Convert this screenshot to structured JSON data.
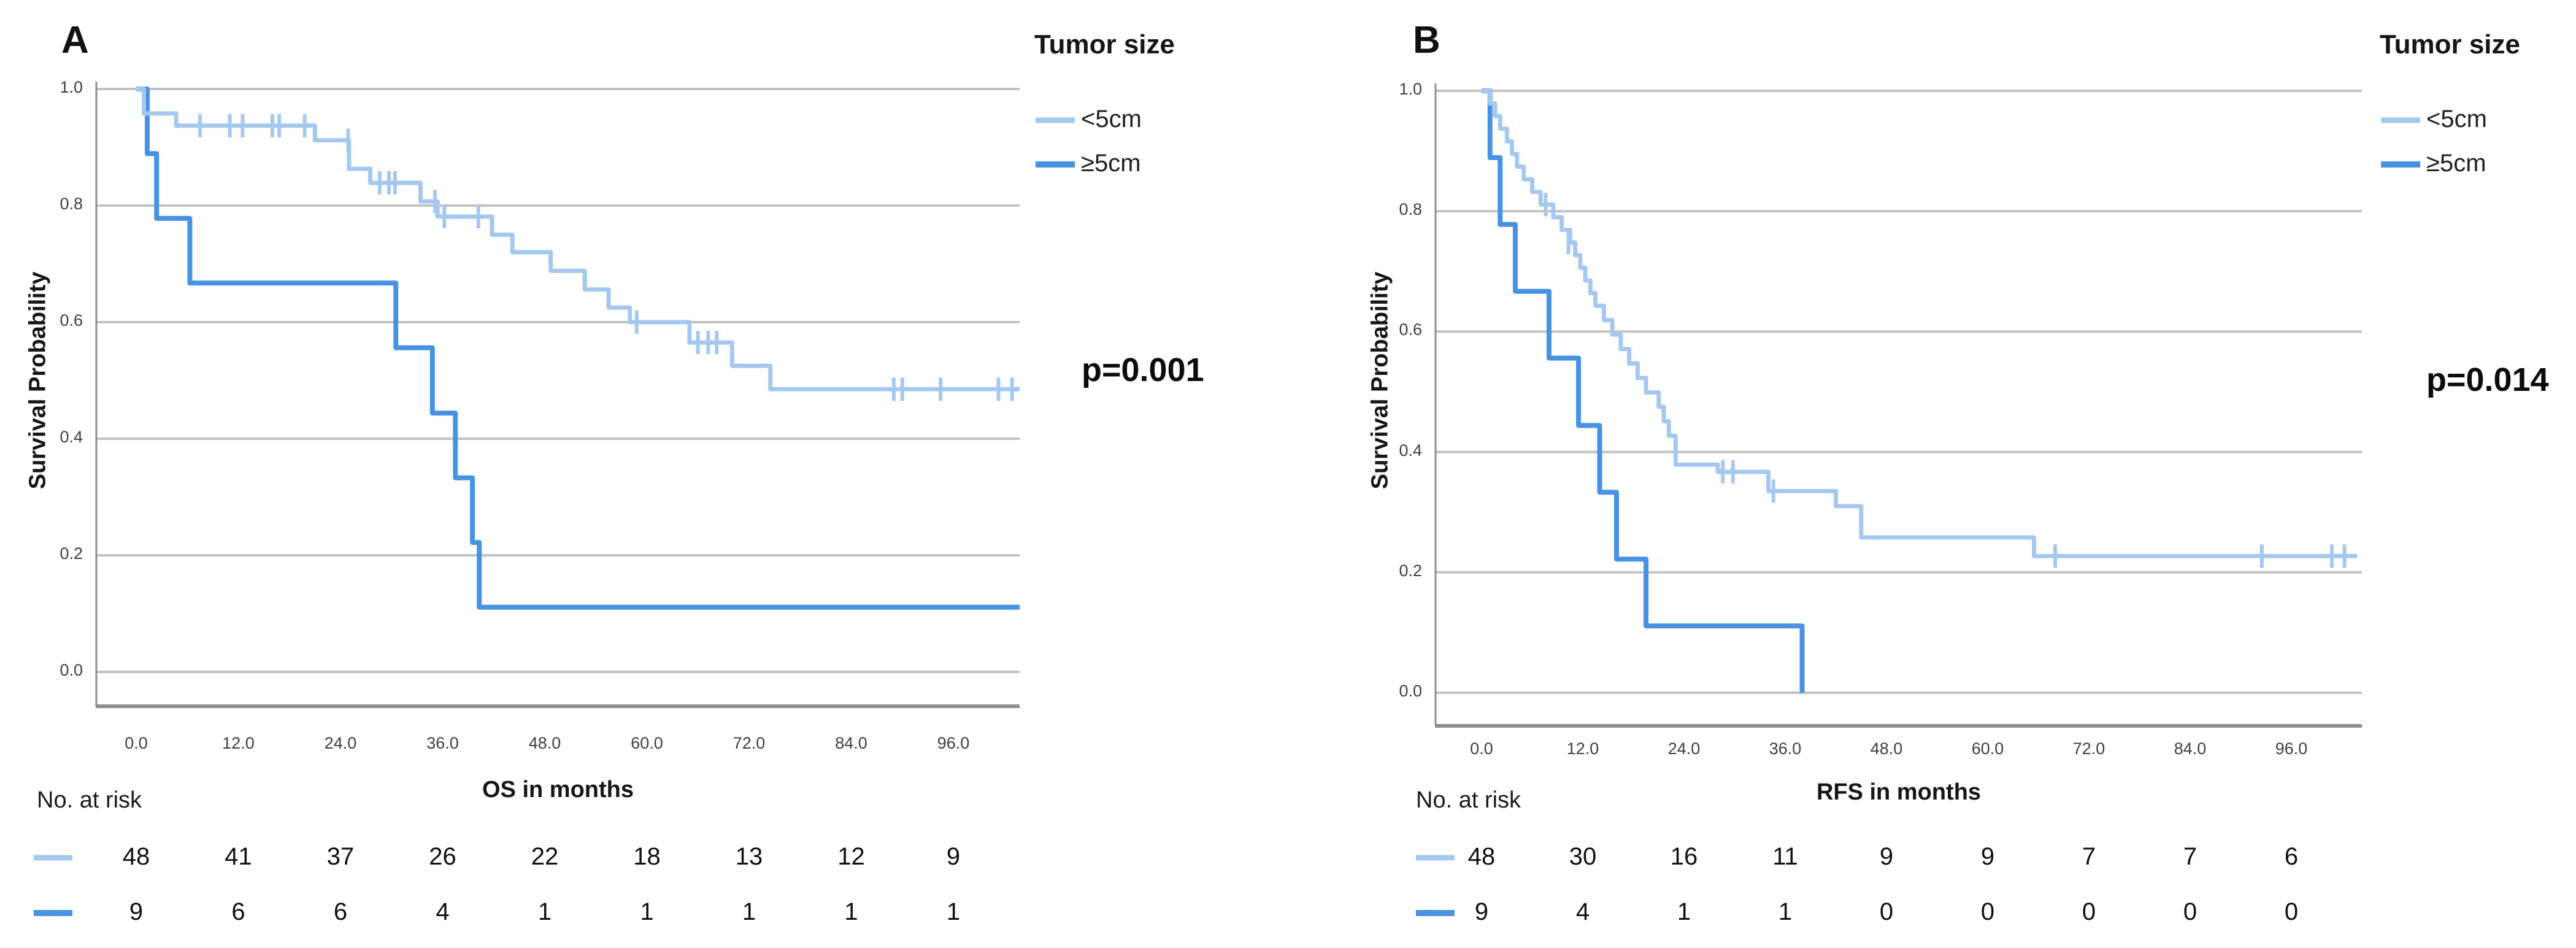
{
  "figure": {
    "type": "kaplan-meier-survival-figure",
    "background": "#ffffff",
    "colors": {
      "small_tumor": "#A5C8EF",
      "large_tumor": "#4792E2",
      "gridline": "#C2C2C2",
      "axis": "#8E8E8E"
    }
  },
  "chart_data": [
    {
      "type": "line",
      "km_plot": true,
      "panel_label": "A",
      "xlabel": "OS in months",
      "ylabel": "Survival Probability",
      "p_value": "p=0.001",
      "legend": {
        "title": "Tumor size",
        "position": "right",
        "items": [
          "<5cm",
          "≥5cm"
        ]
      },
      "x_ticks": [
        "0.0",
        "12.0",
        "24.0",
        "36.0",
        "48.0",
        "60.0",
        "72.0",
        "84.0",
        "96.0"
      ],
      "x_tick_values": [
        0,
        12,
        24,
        36,
        48,
        60,
        72,
        84,
        96
      ],
      "y_ticks": [
        "1.0",
        "0.8",
        "0.6",
        "0.4",
        "0.2",
        "0.0"
      ],
      "y_tick_values": [
        1.0,
        0.8,
        0.6,
        0.4,
        0.2,
        0.0
      ],
      "xlim": [
        0,
        104
      ],
      "ylim": [
        0,
        1
      ],
      "grid": true,
      "series": [
        {
          "name": "<5cm",
          "color": "#A5C8EF",
          "linewidth": 7,
          "end_time": 103.8,
          "steps": [
            [
              0,
              1.0
            ],
            [
              0.9,
              0.958
            ],
            [
              4.7,
              0.937
            ],
            [
              21,
              0.912
            ],
            [
              25,
              0.863
            ],
            [
              27.5,
              0.839
            ],
            [
              33.4,
              0.807
            ],
            [
              35.4,
              0.781
            ],
            [
              41.8,
              0.75
            ],
            [
              44.2,
              0.72
            ],
            [
              48.7,
              0.688
            ],
            [
              52.7,
              0.656
            ],
            [
              55.5,
              0.625
            ],
            [
              58,
              0.6
            ],
            [
              65,
              0.565
            ],
            [
              70,
              0.525
            ],
            [
              74.5,
              0.485
            ]
          ],
          "censors": [
            [
              7.5,
              0.937
            ],
            [
              11,
              0.937
            ],
            [
              12.5,
              0.937
            ],
            [
              16,
              0.937
            ],
            [
              16.8,
              0.937
            ],
            [
              19.8,
              0.937
            ],
            [
              24.9,
              0.912
            ],
            [
              28.6,
              0.839
            ],
            [
              29.7,
              0.839
            ],
            [
              30.4,
              0.839
            ],
            [
              35.1,
              0.807
            ],
            [
              36.2,
              0.781
            ],
            [
              40.2,
              0.781
            ],
            [
              58.8,
              0.6
            ],
            [
              66,
              0.565
            ],
            [
              67.2,
              0.565
            ],
            [
              68.2,
              0.565
            ],
            [
              89,
              0.485
            ],
            [
              90,
              0.485
            ],
            [
              94.5,
              0.485
            ],
            [
              101.3,
              0.485
            ],
            [
              102.9,
              0.485
            ]
          ]
        },
        {
          "name": "≥5cm",
          "color": "#4792E2",
          "linewidth": 8,
          "end_time": 103.8,
          "steps": [
            [
              0,
              1.0
            ],
            [
              1.3,
              0.889
            ],
            [
              2.4,
              0.778
            ],
            [
              6.3,
              0.667
            ],
            [
              30.5,
              0.556
            ],
            [
              34.8,
              0.444
            ],
            [
              37.5,
              0.333
            ],
            [
              39.5,
              0.222
            ],
            [
              40.3,
              0.111
            ]
          ],
          "censors": []
        }
      ],
      "risk_table": {
        "title": "No. at risk",
        "time_points": [
          0,
          12,
          24,
          36,
          48,
          60,
          72,
          84,
          96
        ],
        "rows": [
          {
            "name": "<5cm",
            "color": "#A5C8EF",
            "counts": [
              48,
              41,
              37,
              26,
              22,
              18,
              13,
              12,
              9
            ]
          },
          {
            "name": "≥5cm",
            "color": "#4792E2",
            "counts": [
              9,
              6,
              6,
              4,
              1,
              1,
              1,
              1,
              1
            ]
          }
        ]
      }
    },
    {
      "type": "line",
      "km_plot": true,
      "panel_label": "B",
      "xlabel": "RFS in months",
      "ylabel": "Survival Probability",
      "p_value": "p=0.014",
      "legend": {
        "title": "Tumor size",
        "position": "right",
        "items": [
          "<5cm",
          "≥5cm"
        ]
      },
      "x_ticks": [
        "0.0",
        "12.0",
        "24.0",
        "36.0",
        "48.0",
        "60.0",
        "72.0",
        "84.0",
        "96.0"
      ],
      "x_tick_values": [
        0,
        12,
        24,
        36,
        48,
        60,
        72,
        84,
        96
      ],
      "y_ticks": [
        "1.0",
        "0.8",
        "0.6",
        "0.4",
        "0.2",
        "0.0"
      ],
      "y_tick_values": [
        1.0,
        0.8,
        0.6,
        0.4,
        0.2,
        0.0
      ],
      "xlim": [
        0,
        104
      ],
      "ylim": [
        0,
        1
      ],
      "grid": true,
      "series": [
        {
          "name": "<5cm",
          "color": "#A5C8EF",
          "linewidth": 7,
          "end_time": 103.8,
          "steps": [
            [
              0,
              1.0
            ],
            [
              1,
              0.979
            ],
            [
              1.6,
              0.958
            ],
            [
              2.2,
              0.937
            ],
            [
              3,
              0.916
            ],
            [
              3.6,
              0.895
            ],
            [
              4.2,
              0.874
            ],
            [
              5,
              0.853
            ],
            [
              6,
              0.832
            ],
            [
              7,
              0.811
            ],
            [
              8.5,
              0.79
            ],
            [
              9.5,
              0.769
            ],
            [
              10.5,
              0.748
            ],
            [
              11.1,
              0.727
            ],
            [
              11.7,
              0.706
            ],
            [
              12.3,
              0.685
            ],
            [
              12.9,
              0.664
            ],
            [
              13.5,
              0.643
            ],
            [
              14.5,
              0.619
            ],
            [
              15.5,
              0.595
            ],
            [
              16.5,
              0.571
            ],
            [
              17.5,
              0.547
            ],
            [
              18.5,
              0.523
            ],
            [
              19.5,
              0.499
            ],
            [
              21,
              0.475
            ],
            [
              21.6,
              0.451
            ],
            [
              22.2,
              0.427
            ],
            [
              23,
              0.379
            ],
            [
              28,
              0.367
            ],
            [
              34,
              0.335
            ],
            [
              42,
              0.31
            ],
            [
              45,
              0.258
            ],
            [
              65.5,
              0.227
            ]
          ],
          "censors": [
            [
              7.6,
              0.811
            ],
            [
              10.3,
              0.748
            ],
            [
              28.6,
              0.367
            ],
            [
              29.8,
              0.367
            ],
            [
              34.6,
              0.335
            ],
            [
              68,
              0.227
            ],
            [
              92.5,
              0.227
            ],
            [
              100.8,
              0.227
            ],
            [
              102.3,
              0.227
            ]
          ]
        },
        {
          "name": "≥5cm",
          "color": "#4792E2",
          "linewidth": 8,
          "end_time": 38,
          "steps": [
            [
              0,
              1.0
            ],
            [
              1,
              0.889
            ],
            [
              2.2,
              0.778
            ],
            [
              4,
              0.667
            ],
            [
              8,
              0.556
            ],
            [
              11.5,
              0.444
            ],
            [
              14,
              0.333
            ],
            [
              16,
              0.222
            ],
            [
              19.5,
              0.111
            ],
            [
              38,
              0.0
            ]
          ],
          "censors": []
        }
      ],
      "risk_table": {
        "title": "No. at risk",
        "time_points": [
          0,
          12,
          24,
          36,
          48,
          60,
          72,
          84,
          96
        ],
        "rows": [
          {
            "name": "<5cm",
            "color": "#A5C8EF",
            "counts": [
              48,
              30,
              16,
              11,
              9,
              9,
              7,
              7,
              6
            ]
          },
          {
            "name": "≥5cm",
            "color": "#4792E2",
            "counts": [
              9,
              4,
              1,
              1,
              0,
              0,
              0,
              0,
              0
            ]
          }
        ]
      }
    }
  ]
}
